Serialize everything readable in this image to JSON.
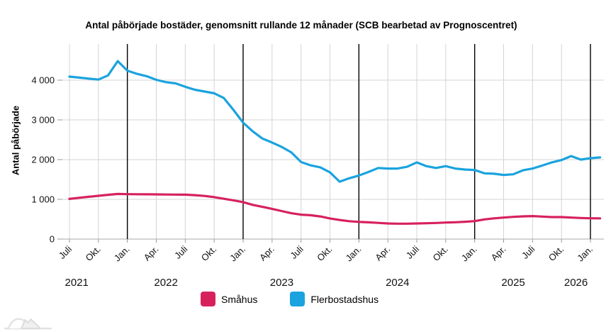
{
  "title": "Antal påbörjade bostäder, genomsnitt rullande 12 månader (SCB bearbetad av Prognoscentret)",
  "y_axis": {
    "label": "Antal påbörjade",
    "tick_labels": [
      "0",
      "1 000",
      "2 000",
      "3 000",
      "4 000"
    ],
    "tick_values": [
      0,
      1000,
      2000,
      3000,
      4000
    ]
  },
  "x_axis": {
    "tick_labels": [
      "Juli",
      "Okt.",
      "Jan.",
      "Apr.",
      "Juli",
      "Okt.",
      "Jan.",
      "Apr.",
      "Juli",
      "Okt.",
      "Jan.",
      "Apr.",
      "Juli",
      "Okt.",
      "Jan.",
      "Apr.",
      "Juli",
      "Okt.",
      "Jan."
    ],
    "years": [
      "2021",
      "2022",
      "2023",
      "2024",
      "2025",
      "2026"
    ]
  },
  "chart_data": {
    "type": "line",
    "title": "Antal påbörjade bostäder, genomsnitt rullande 12 månader (SCB bearbetad av Prognoscentret)",
    "ylabel": "Antal påbörjade",
    "x_monthly_start": "2021-07",
    "x_monthly_end": "2026-02",
    "ylim": [
      0,
      4900
    ],
    "grid": true,
    "legend_position": "bottom",
    "year_boundary_lines": [
      "2022-01",
      "2023-01",
      "2024-01",
      "2025-01",
      "2026-01"
    ],
    "series": [
      {
        "name": "Småhus",
        "color": "#d7215d",
        "values": [
          1010,
          1040,
          1065,
          1090,
          1115,
          1135,
          1130,
          1128,
          1126,
          1125,
          1122,
          1120,
          1118,
          1105,
          1085,
          1055,
          1015,
          975,
          930,
          860,
          810,
          760,
          705,
          650,
          615,
          600,
          570,
          520,
          480,
          450,
          432,
          422,
          407,
          393,
          388,
          388,
          392,
          398,
          406,
          416,
          424,
          435,
          452,
          494,
          522,
          541,
          559,
          571,
          578,
          566,
          554,
          553,
          541,
          530,
          523,
          522
        ]
      },
      {
        "name": "Flerbostadshus",
        "color": "#1aa3de",
        "values": [
          4090,
          4065,
          4040,
          4015,
          4120,
          4480,
          4240,
          4160,
          4100,
          4010,
          3950,
          3920,
          3835,
          3760,
          3715,
          3670,
          3550,
          3250,
          2930,
          2710,
          2530,
          2430,
          2320,
          2180,
          1940,
          1855,
          1805,
          1680,
          1445,
          1530,
          1600,
          1690,
          1790,
          1775,
          1775,
          1820,
          1930,
          1835,
          1790,
          1835,
          1775,
          1750,
          1740,
          1655,
          1645,
          1615,
          1630,
          1730,
          1775,
          1850,
          1930,
          1990,
          2090,
          2000,
          2035,
          2055
        ]
      }
    ]
  }
}
